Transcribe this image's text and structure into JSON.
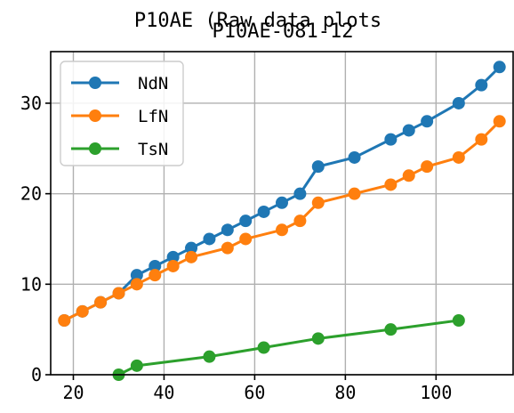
{
  "chart_data": {
    "type": "line",
    "suptitle": "P10AE (Raw data plots",
    "title": "P10AE-081-12",
    "xlabel": "",
    "ylabel": "",
    "xlim": [
      15,
      117
    ],
    "ylim": [
      0,
      35.7
    ],
    "xticks": [
      20,
      40,
      60,
      80,
      100
    ],
    "yticks": [
      0,
      10,
      20,
      30
    ],
    "grid": true,
    "legend_position": "upper-left",
    "series": [
      {
        "name": "NdN",
        "color": "#1f77b4",
        "x": [
          18,
          22,
          26,
          30,
          34,
          38,
          42,
          46,
          50,
          54,
          58,
          62,
          66,
          70,
          74,
          82,
          90,
          94,
          98,
          105,
          110,
          114
        ],
        "y": [
          6,
          7,
          8,
          9,
          11,
          12,
          13,
          14,
          15,
          16,
          17,
          18,
          19,
          20,
          23,
          24,
          26,
          27,
          28,
          30,
          32,
          34
        ]
      },
      {
        "name": "LfN",
        "color": "#ff7f0e",
        "x": [
          18,
          22,
          26,
          30,
          34,
          38,
          42,
          46,
          54,
          58,
          66,
          70,
          74,
          82,
          90,
          94,
          98,
          105,
          110,
          114
        ],
        "y": [
          6,
          7,
          8,
          9,
          10,
          11,
          12,
          13,
          14,
          15,
          16,
          17,
          19,
          20,
          21,
          22,
          23,
          24,
          26,
          28
        ]
      },
      {
        "name": "TsN",
        "color": "#2ca02c",
        "x": [
          30,
          34,
          50,
          62,
          74,
          90,
          105
        ],
        "y": [
          0,
          1,
          2,
          3,
          4,
          5,
          6
        ]
      }
    ]
  }
}
